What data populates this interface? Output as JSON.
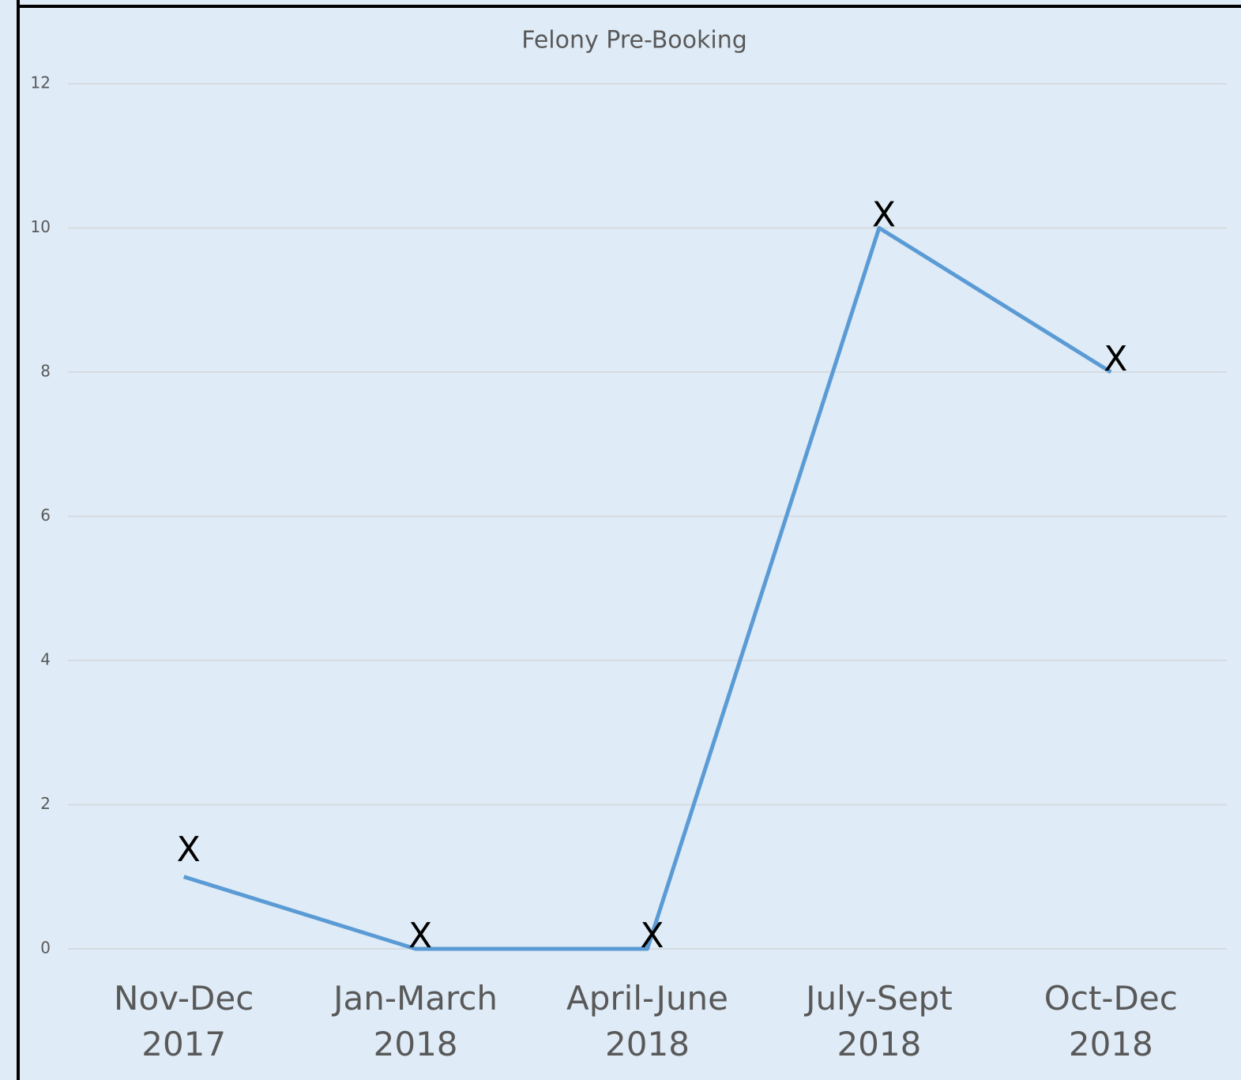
{
  "chart_data": {
    "type": "line",
    "title": "Felony Pre-Booking",
    "categories": [
      "Nov-Dec 2017",
      "Jan-March 2018",
      "April-June 2018",
      "July-Sept 2018",
      "Oct-Dec 2018"
    ],
    "series": [
      {
        "name": "Felony Pre-Booking",
        "color": "#5b9bd5",
        "values": [
          1,
          0,
          0,
          10,
          8
        ]
      }
    ],
    "annotations": [
      "X",
      "X",
      "X",
      "X",
      "X"
    ],
    "ylim": [
      0,
      12
    ],
    "yticks": [
      0,
      2,
      4,
      6,
      8,
      10,
      12
    ],
    "grid": true
  }
}
